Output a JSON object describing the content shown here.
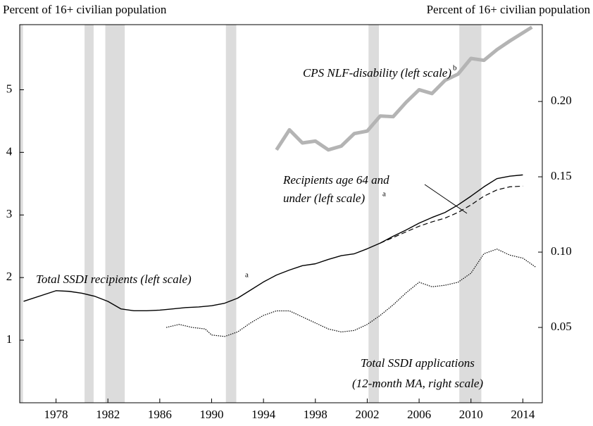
{
  "chart_data": {
    "type": "line",
    "y_label": "Percent of 16+ civilian population",
    "y2_label": "Percent of 16+ civilian population",
    "xlim": [
      1975.2,
      2015.5
    ],
    "xticks": [
      1978,
      1982,
      1986,
      1990,
      1994,
      1998,
      2002,
      2006,
      2010,
      2014
    ],
    "ylim": [
      0,
      6.04
    ],
    "yticks": [
      1,
      2,
      3,
      4,
      5
    ],
    "y2lim": [
      0,
      0.251
    ],
    "y2ticks": [
      {
        "value": 0.05,
        "label": "0.05"
      },
      {
        "value": 0.1,
        "label": "0.10"
      },
      {
        "value": 0.15,
        "label": "0.15"
      },
      {
        "value": 0.2,
        "label": "0.20"
      }
    ],
    "shading_color": "#dcdcdc",
    "shaded_periods": [
      [
        1975.2,
        1975.45
      ],
      [
        1980.2,
        1980.9
      ],
      [
        1981.8,
        1983.3
      ],
      [
        1991.1,
        1991.9
      ],
      [
        2002.1,
        2002.9
      ],
      [
        2009.1,
        2010.8
      ]
    ],
    "series": [
      {
        "name": "Total SSDI recipients (left scale)",
        "superscript": "a",
        "color": "#000000",
        "width": 1.4,
        "dash": "solid",
        "axis": "y",
        "x": [
          1975.5,
          1978,
          1979,
          1980,
          1981,
          1982,
          1983,
          1984,
          1985,
          1986,
          1987,
          1988,
          1989,
          1990,
          1991,
          1992,
          1993,
          1994,
          1995,
          1996,
          1997,
          1998,
          1999,
          2000,
          2001,
          2002,
          2003,
          2004,
          2005,
          2006,
          2007,
          2008,
          2009,
          2010,
          2011,
          2012,
          2013,
          2014
        ],
        "values": [
          1.62,
          1.79,
          1.78,
          1.75,
          1.7,
          1.62,
          1.5,
          1.47,
          1.47,
          1.48,
          1.5,
          1.52,
          1.53,
          1.55,
          1.59,
          1.67,
          1.8,
          1.93,
          2.04,
          2.12,
          2.19,
          2.22,
          2.29,
          2.35,
          2.38,
          2.46,
          2.55,
          2.66,
          2.76,
          2.87,
          2.96,
          3.04,
          3.16,
          3.3,
          3.45,
          3.58,
          3.62,
          3.64
        ]
      },
      {
        "name": "Recipients age 64 and under (left scale)",
        "name_lines": [
          "Recipients age 64 and",
          "under (left scale)"
        ],
        "superscript": "a",
        "color": "#000000",
        "width": 1.2,
        "dash": "dashed",
        "axis": "y",
        "x": [
          2003,
          2004,
          2005,
          2006,
          2007,
          2008,
          2009,
          2010,
          2011,
          2012,
          2013,
          2014
        ],
        "values": [
          2.55,
          2.64,
          2.73,
          2.82,
          2.89,
          2.95,
          3.04,
          3.16,
          3.3,
          3.4,
          3.45,
          3.46
        ]
      },
      {
        "name": "CPS NLF-disability (left scale)",
        "superscript": "b",
        "color": "#b4b4b4",
        "width": 5,
        "dash": "solid",
        "axis": "y",
        "x": [
          1995,
          1996,
          1997,
          1998,
          1999,
          2000,
          2001,
          2002,
          2003,
          2004,
          2005,
          2006,
          2007,
          2008,
          2009,
          2010,
          2011,
          2012,
          2013,
          2014.7
        ],
        "values": [
          4.04,
          4.36,
          4.15,
          4.18,
          4.04,
          4.1,
          4.3,
          4.34,
          4.58,
          4.57,
          4.8,
          5.0,
          4.94,
          5.15,
          5.25,
          5.5,
          5.47,
          5.64,
          5.78,
          6.0
        ]
      },
      {
        "name": "Total SSDI applications (12-month MA, right scale)",
        "name_lines": [
          "Total SSDI applications",
          "(12-month MA, right scale)"
        ],
        "color": "#000000",
        "width": 1.2,
        "dash": "dotted",
        "axis": "y2",
        "x": [
          1986.5,
          1987.5,
          1988.5,
          1989.5,
          1990,
          1991,
          1992,
          1993,
          1994,
          1995,
          1996,
          1997,
          1998,
          1999,
          2000,
          2001,
          2002,
          2003,
          2004,
          2005,
          2006,
          2007,
          2008,
          2009,
          2010,
          2011,
          2012,
          2013,
          2014,
          2015
        ],
        "values": [
          0.05,
          0.052,
          0.05,
          0.049,
          0.045,
          0.044,
          0.047,
          0.053,
          0.058,
          0.061,
          0.061,
          0.057,
          0.053,
          0.049,
          0.047,
          0.048,
          0.052,
          0.058,
          0.065,
          0.073,
          0.08,
          0.077,
          0.078,
          0.08,
          0.086,
          0.099,
          0.102,
          0.098,
          0.096,
          0.09
        ]
      }
    ]
  }
}
